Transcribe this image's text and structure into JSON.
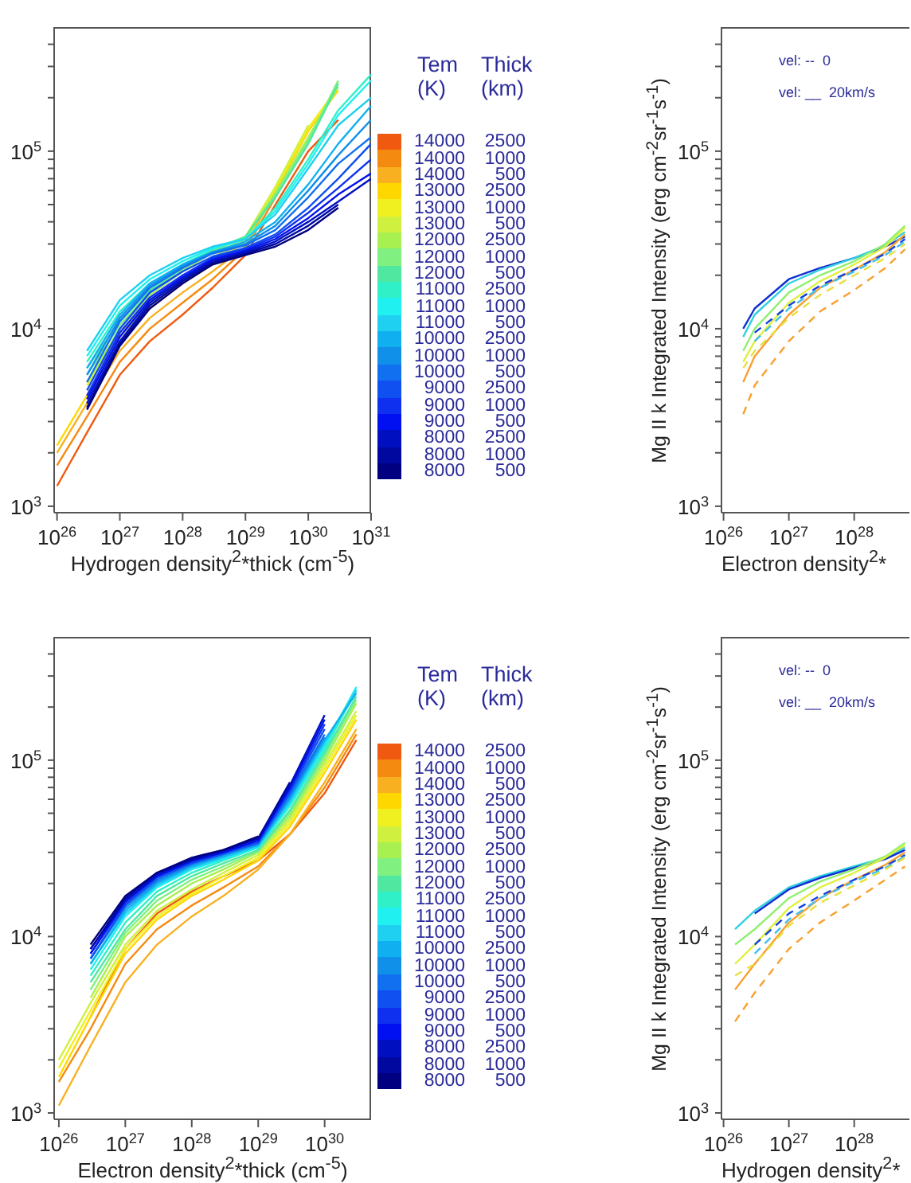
{
  "chart_data": [
    {
      "type": "line",
      "log": "xy",
      "xlabel": "Hydrogen density$^{2}$*thick (cm$^{-5}$)",
      "legend": "right",
      "legend_title": "Tem  Thick\n(K)  (km)",
      "xlim": [
        9e+25,
        1e+31
      ],
      "ylim": [
        920,
        500000
      ],
      "xticks": [
        {
          "value": 1e+26,
          "label": "10$^{26}$"
        },
        {
          "value": 1e+27,
          "label": "10$^{27}$"
        },
        {
          "value": 1e+28,
          "label": "10$^{28}$"
        },
        {
          "value": 1e+29,
          "label": "10$^{29}$"
        },
        {
          "value": 1e+30,
          "label": "10$^{30}$"
        },
        {
          "value": 1e+31,
          "label": "10$^{31}$"
        }
      ],
      "yticks": [
        {
          "value": 1000,
          "label": "10$^{3}$"
        },
        {
          "value": 2000,
          "label": null
        },
        {
          "value": 3000,
          "label": null
        },
        {
          "value": 4000,
          "label": null
        },
        {
          "value": 5000,
          "label": null
        },
        {
          "value": 6000,
          "label": null
        },
        {
          "value": 7000,
          "label": null
        },
        {
          "value": 8000,
          "label": null
        },
        {
          "value": 9000,
          "label": null
        },
        {
          "value": 10000,
          "label": "10$^{4}$"
        },
        {
          "value": 20000,
          "label": null
        },
        {
          "value": 30000,
          "label": null
        },
        {
          "value": 40000,
          "label": null
        },
        {
          "value": 50000,
          "label": null
        },
        {
          "value": 60000,
          "label": null
        },
        {
          "value": 70000,
          "label": null
        },
        {
          "value": 80000,
          "label": null
        },
        {
          "value": 90000,
          "label": null
        },
        {
          "value": 100000,
          "label": "10$^{5}$"
        },
        {
          "value": 200000,
          "label": null
        },
        {
          "value": 300000,
          "label": null
        },
        {
          "value": 400000,
          "label": null
        }
      ],
      "x": [
        1e+26,
        3e+26,
        1e+27,
        3e+27,
        1e+28,
        3e+28,
        1e+29,
        3e+29,
        1e+30,
        3e+30,
        1e+31
      ],
      "series": [
        {
          "name": "14000 2500",
          "color": "#f05a10",
          "values": [
            1300,
            2600,
            5500,
            8500,
            12000,
            17000,
            26000,
            50000,
            100000,
            150000,
            null
          ]
        },
        {
          "name": "14000 1000",
          "color": "#f58a10",
          "values": [
            1700,
            3200,
            6500,
            10000,
            14000,
            19000,
            28000,
            55000,
            115000,
            null,
            null
          ]
        },
        {
          "name": "14000 500",
          "color": "#f8b020",
          "values": [
            2000,
            3800,
            7500,
            11500,
            16000,
            21000,
            29000,
            60000,
            130000,
            null,
            null
          ]
        },
        {
          "name": "13000 2500",
          "color": "#ffd700",
          "values": [
            2200,
            4200,
            8500,
            13000,
            18000,
            23000,
            31000,
            60000,
            130000,
            220000,
            null
          ]
        },
        {
          "name": "13000 1000",
          "color": "#f0f020",
          "values": [
            null,
            4800,
            9000,
            14000,
            19000,
            24000,
            32000,
            62000,
            135000,
            230000,
            null
          ]
        },
        {
          "name": "13000 500",
          "color": "#d0f040",
          "values": [
            null,
            5000,
            9500,
            14500,
            19500,
            25000,
            33000,
            63000,
            140000,
            null,
            null
          ]
        },
        {
          "name": "12000 2500",
          "color": "#a8f050",
          "values": [
            null,
            5000,
            10000,
            15500,
            21000,
            27000,
            33000,
            58000,
            120000,
            230000,
            null
          ]
        },
        {
          "name": "12000 1000",
          "color": "#80f080",
          "values": [
            null,
            5500,
            10500,
            16000,
            21500,
            27500,
            33000,
            57000,
            115000,
            250000,
            null
          ]
        },
        {
          "name": "12000 500",
          "color": "#50e8a0",
          "values": [
            null,
            6000,
            11000,
            16500,
            22000,
            28000,
            33000,
            55000,
            110000,
            240000,
            null
          ]
        },
        {
          "name": "11000 2500",
          "color": "#30f0c8",
          "values": [
            null,
            6500,
            12500,
            18000,
            23000,
            28000,
            32000,
            48000,
            90000,
            170000,
            270000
          ]
        },
        {
          "name": "11000 1000",
          "color": "#20f0f0",
          "values": [
            null,
            7000,
            13500,
            19000,
            24000,
            28500,
            32000,
            46000,
            85000,
            160000,
            250000
          ]
        },
        {
          "name": "11000 500",
          "color": "#20d0f0",
          "values": [
            null,
            7500,
            14500,
            20000,
            25000,
            29000,
            32000,
            44000,
            80000,
            140000,
            200000
          ]
        },
        {
          "name": "10000 2500",
          "color": "#10b0f0",
          "values": [
            null,
            6000,
            12000,
            18000,
            23000,
            27000,
            31000,
            40000,
            65000,
            110000,
            180000
          ]
        },
        {
          "name": "10000 1000",
          "color": "#1090e8",
          "values": [
            null,
            5500,
            11500,
            17500,
            22500,
            27000,
            30000,
            38000,
            60000,
            95000,
            150000
          ]
        },
        {
          "name": "10000 500",
          "color": "#1070f0",
          "values": [
            null,
            5000,
            11000,
            17000,
            22000,
            26500,
            29500,
            36000,
            55000,
            85000,
            120000
          ]
        },
        {
          "name": "9000 2500",
          "color": "#1050f0",
          "values": [
            null,
            4500,
            10000,
            16000,
            21000,
            25500,
            28500,
            34000,
            48000,
            70000,
            110000
          ]
        },
        {
          "name": "9000 1000",
          "color": "#1030f0",
          "values": [
            null,
            4200,
            9500,
            15000,
            20000,
            25000,
            28000,
            33000,
            45000,
            62000,
            90000
          ]
        },
        {
          "name": "9000 500",
          "color": "#0010f0",
          "values": [
            null,
            4000,
            9000,
            14500,
            19500,
            24500,
            27500,
            32000,
            42000,
            57000,
            75000
          ]
        },
        {
          "name": "8000 2500",
          "color": "#0010c0",
          "values": [
            null,
            3800,
            8500,
            14000,
            19000,
            24000,
            27000,
            31000,
            40000,
            52000,
            70000
          ]
        },
        {
          "name": "8000 1000",
          "color": "#0008a0",
          "values": [
            null,
            3600,
            8200,
            13500,
            18500,
            23500,
            26500,
            30000,
            38000,
            50000,
            null
          ]
        },
        {
          "name": "8000 500",
          "color": "#000080",
          "values": [
            null,
            3500,
            8000,
            13000,
            18000,
            23000,
            26000,
            29000,
            36000,
            48000,
            null
          ]
        }
      ]
    },
    {
      "type": "line",
      "log": "xy",
      "xlabel": "Electron density$^{2}$*thick (cm$^{-5}$)",
      "legend": "right",
      "legend_title": "Tem  Thick\n(K)  (km)",
      "xlim": [
        8.5e+25,
        5e+30
      ],
      "ylim": [
        920,
        500000
      ],
      "xticks": [
        {
          "value": 1e+26,
          "label": "10$^{26}$"
        },
        {
          "value": 1e+27,
          "label": "10$^{27}$"
        },
        {
          "value": 1e+28,
          "label": "10$^{28}$"
        },
        {
          "value": 1e+29,
          "label": "10$^{29}$"
        },
        {
          "value": 1e+30,
          "label": "10$^{30}$"
        }
      ],
      "yticks": [
        {
          "value": 1000,
          "label": "10$^{3}$"
        },
        {
          "value": 2000,
          "label": null
        },
        {
          "value": 3000,
          "label": null
        },
        {
          "value": 4000,
          "label": null
        },
        {
          "value": 5000,
          "label": null
        },
        {
          "value": 6000,
          "label": null
        },
        {
          "value": 7000,
          "label": null
        },
        {
          "value": 8000,
          "label": null
        },
        {
          "value": 9000,
          "label": null
        },
        {
          "value": 10000,
          "label": "10$^{4}$"
        },
        {
          "value": 20000,
          "label": null
        },
        {
          "value": 30000,
          "label": null
        },
        {
          "value": 40000,
          "label": null
        },
        {
          "value": 50000,
          "label": null
        },
        {
          "value": 60000,
          "label": null
        },
        {
          "value": 70000,
          "label": null
        },
        {
          "value": 80000,
          "label": null
        },
        {
          "value": 90000,
          "label": null
        },
        {
          "value": 100000,
          "label": "10$^{5}$"
        },
        {
          "value": 200000,
          "label": null
        },
        {
          "value": 300000,
          "label": null
        },
        {
          "value": 400000,
          "label": null
        }
      ],
      "x": [
        1e+26,
        3e+26,
        1e+27,
        3e+27,
        1e+28,
        3e+28,
        1e+29,
        3e+29,
        1e+30,
        3e+30
      ],
      "series": [
        {
          "name": "14000 2500",
          "color": "#f05a10",
          "values": [
            null,
            3500,
            8500,
            13500,
            18000,
            22000,
            27000,
            38000,
            65000,
            130000
          ]
        },
        {
          "name": "14000 1000",
          "color": "#f58a10",
          "values": [
            1500,
            3000,
            7000,
            11000,
            15000,
            19000,
            25000,
            38000,
            70000,
            140000
          ]
        },
        {
          "name": "14000 500",
          "color": "#f8b020",
          "values": [
            1100,
            2400,
            5500,
            9000,
            13000,
            17000,
            24000,
            38000,
            75000,
            150000
          ]
        },
        {
          "name": "13000 2500",
          "color": "#ffd700",
          "values": [
            1600,
            3500,
            8000,
            12500,
            17000,
            21000,
            27000,
            42000,
            85000,
            170000
          ]
        },
        {
          "name": "13000 1000",
          "color": "#f0f020",
          "values": [
            1800,
            3800,
            8500,
            13000,
            17500,
            22000,
            28000,
            44000,
            90000,
            180000
          ]
        },
        {
          "name": "13000 500",
          "color": "#d0f040",
          "values": [
            2000,
            4200,
            9000,
            14000,
            18500,
            23000,
            29000,
            46000,
            95000,
            190000
          ]
        },
        {
          "name": "12000 2500",
          "color": "#a8f050",
          "values": [
            null,
            4500,
            10000,
            15000,
            20000,
            24000,
            30000,
            48000,
            100000,
            210000
          ]
        },
        {
          "name": "12000 1000",
          "color": "#80f080",
          "values": [
            null,
            5000,
            10500,
            16000,
            21000,
            25000,
            30500,
            50000,
            105000,
            220000
          ]
        },
        {
          "name": "12000 500",
          "color": "#50e8a0",
          "values": [
            null,
            5500,
            11000,
            17000,
            22000,
            26000,
            31000,
            52000,
            110000,
            230000
          ]
        },
        {
          "name": "11000 2500",
          "color": "#30f0c8",
          "values": [
            null,
            6000,
            12000,
            18000,
            23000,
            27000,
            32000,
            55000,
            115000,
            250000
          ]
        },
        {
          "name": "11000 1000",
          "color": "#20f0f0",
          "values": [
            null,
            6500,
            13000,
            19000,
            24000,
            27500,
            32000,
            56000,
            120000,
            260000
          ]
        },
        {
          "name": "11000 500",
          "color": "#20d0f0",
          "values": [
            null,
            7000,
            13500,
            19500,
            24500,
            28000,
            32500,
            58000,
            125000,
            250000
          ]
        },
        {
          "name": "10000 2500",
          "color": "#10b0f0",
          "values": [
            null,
            7000,
            14000,
            20000,
            25000,
            28500,
            33000,
            60000,
            130000,
            240000
          ]
        },
        {
          "name": "10000 1000",
          "color": "#1090e8",
          "values": [
            null,
            7500,
            14500,
            20500,
            25500,
            29000,
            33500,
            62000,
            135000,
            null
          ]
        },
        {
          "name": "10000 500",
          "color": "#1070f0",
          "values": [
            null,
            7500,
            15000,
            21000,
            26000,
            29500,
            34000,
            64000,
            140000,
            null
          ]
        },
        {
          "name": "9000 2500",
          "color": "#1050f0",
          "values": [
            null,
            7500,
            15000,
            21500,
            26000,
            29500,
            34000,
            66000,
            150000,
            null
          ]
        },
        {
          "name": "9000 1000",
          "color": "#1030f0",
          "values": [
            null,
            8000,
            15500,
            22000,
            26500,
            30000,
            35000,
            68000,
            160000,
            null
          ]
        },
        {
          "name": "9000 500",
          "color": "#0010f0",
          "values": [
            null,
            8000,
            16000,
            22000,
            27000,
            30000,
            35000,
            70000,
            170000,
            null
          ]
        },
        {
          "name": "8000 2500",
          "color": "#0010c0",
          "values": [
            null,
            8500,
            16000,
            22500,
            27000,
            30500,
            36000,
            72000,
            180000,
            null
          ]
        },
        {
          "name": "8000 1000",
          "color": "#0008a0",
          "values": [
            null,
            8500,
            16500,
            23000,
            27500,
            31000,
            36000,
            75000,
            null,
            null
          ]
        },
        {
          "name": "8000 500",
          "color": "#000080",
          "values": [
            null,
            9000,
            17000,
            23000,
            28000,
            31000,
            37000,
            null,
            null,
            null
          ]
        }
      ]
    },
    {
      "type": "line",
      "log": "xy",
      "xlabel": "Electron density$^{2}$*",
      "ylabel": "Mg II k Integrated Intensity (erg cm$^{-2}$sr$^{-1}$s$^{-1}$)",
      "annotations": [
        "vel: --  0",
        "vel: __  20km/s"
      ],
      "xlim": [
        9.3e+25,
        7e+28
      ],
      "ylim": [
        920,
        500000
      ],
      "xticks": [
        {
          "value": 1e+26,
          "label": "10$^{26}$"
        },
        {
          "value": 1e+27,
          "label": "10$^{27}$"
        },
        {
          "value": 1e+28,
          "label": "10$^{28}$"
        }
      ],
      "yticks": [
        {
          "value": 1000,
          "label": "10$^{3}$"
        },
        {
          "value": 2000,
          "label": null
        },
        {
          "value": 3000,
          "label": null
        },
        {
          "value": 4000,
          "label": null
        },
        {
          "value": 5000,
          "label": null
        },
        {
          "value": 6000,
          "label": null
        },
        {
          "value": 7000,
          "label": null
        },
        {
          "value": 8000,
          "label": null
        },
        {
          "value": 9000,
          "label": null
        },
        {
          "value": 10000,
          "label": "10$^{4}$"
        },
        {
          "value": 20000,
          "label": null
        },
        {
          "value": 30000,
          "label": null
        },
        {
          "value": 40000,
          "label": null
        },
        {
          "value": 50000,
          "label": null
        },
        {
          "value": 60000,
          "label": null
        },
        {
          "value": 70000,
          "label": null
        },
        {
          "value": 80000,
          "label": null
        },
        {
          "value": 90000,
          "label": null
        },
        {
          "value": 100000,
          "label": "10$^{5}$"
        },
        {
          "value": 200000,
          "label": null
        },
        {
          "value": 300000,
          "label": null
        },
        {
          "value": 400000,
          "label": null
        }
      ],
      "x": [
        2e+26,
        3e+26,
        1e+27,
        3e+27,
        1e+28,
        3e+28,
        6e+28
      ],
      "series": [
        {
          "color": "#1030d0",
          "line_style": "solid",
          "values": [
            10000,
            13000,
            19000,
            22000,
            25000,
            29000,
            33000
          ]
        },
        {
          "color": "#30d0e0",
          "line_style": "solid",
          "values": [
            9000,
            12000,
            18000,
            21500,
            25000,
            29500,
            35000
          ]
        },
        {
          "color": "#90f070",
          "line_style": "solid",
          "values": [
            7500,
            10000,
            16000,
            20000,
            24000,
            30000,
            38000
          ]
        },
        {
          "color": "#e0f040",
          "line_style": "solid",
          "values": [
            6500,
            8500,
            14000,
            18500,
            23000,
            29000,
            37000
          ]
        },
        {
          "color": "#f8a030",
          "line_style": "solid",
          "values": [
            5000,
            7000,
            12000,
            17000,
            21500,
            27000,
            34000
          ]
        },
        {
          "color": "#1040e0",
          "line_style": "dashed",
          "values": [
            null,
            9500,
            13500,
            17500,
            21500,
            26500,
            32000
          ]
        },
        {
          "color": "#40c0f0",
          "line_style": "dashed",
          "values": [
            null,
            8500,
            13000,
            17000,
            21000,
            26000,
            31000
          ]
        },
        {
          "color": "#e8e040",
          "line_style": "dashed",
          "values": [
            6000,
            7500,
            11500,
            15500,
            20000,
            25000,
            30000
          ]
        },
        {
          "color": "#f8a030",
          "line_style": "dashed",
          "values": [
            3300,
            4800,
            8500,
            12500,
            16500,
            22000,
            28000
          ]
        }
      ]
    },
    {
      "type": "line",
      "log": "xy",
      "xlabel": "Hydrogen density$^{2}$*",
      "ylabel": "Mg II k Integrated Intensity (erg cm$^{-2}$sr$^{-1}$s$^{-1}$)",
      "annotations": [
        "vel: --  0",
        "vel: __  20km/s"
      ],
      "xlim": [
        9.3e+25,
        7e+28
      ],
      "ylim": [
        920,
        500000
      ],
      "xticks": [
        {
          "value": 1e+26,
          "label": "10$^{26}$"
        },
        {
          "value": 1e+27,
          "label": "10$^{27}$"
        },
        {
          "value": 1e+28,
          "label": "10$^{28}$"
        }
      ],
      "yticks": [
        {
          "value": 1000,
          "label": "10$^{3}$"
        },
        {
          "value": 2000,
          "label": null
        },
        {
          "value": 3000,
          "label": null
        },
        {
          "value": 4000,
          "label": null
        },
        {
          "value": 5000,
          "label": null
        },
        {
          "value": 6000,
          "label": null
        },
        {
          "value": 7000,
          "label": null
        },
        {
          "value": 8000,
          "label": null
        },
        {
          "value": 9000,
          "label": null
        },
        {
          "value": 10000,
          "label": "10$^{4}$"
        },
        {
          "value": 20000,
          "label": null
        },
        {
          "value": 30000,
          "label": null
        },
        {
          "value": 40000,
          "label": null
        },
        {
          "value": 50000,
          "label": null
        },
        {
          "value": 60000,
          "label": null
        },
        {
          "value": 70000,
          "label": null
        },
        {
          "value": 80000,
          "label": null
        },
        {
          "value": 90000,
          "label": null
        },
        {
          "value": 100000,
          "label": "10$^{5}$"
        },
        {
          "value": 200000,
          "label": null
        },
        {
          "value": 300000,
          "label": null
        },
        {
          "value": 400000,
          "label": null
        }
      ],
      "x": [
        1.5e+26,
        3e+26,
        1e+27,
        3e+27,
        1e+28,
        3e+28,
        6e+28
      ],
      "series": [
        {
          "color": "#30d0e0",
          "line_style": "solid",
          "values": [
            11000,
            14000,
            19000,
            22000,
            25000,
            28000,
            32000
          ]
        },
        {
          "color": "#1030d0",
          "line_style": "solid",
          "values": [
            null,
            13500,
            18500,
            21500,
            24500,
            27500,
            31000
          ]
        },
        {
          "color": "#90f070",
          "line_style": "solid",
          "values": [
            9000,
            11000,
            16500,
            20500,
            24000,
            28500,
            34000
          ]
        },
        {
          "color": "#e0f040",
          "line_style": "solid",
          "values": [
            7000,
            9000,
            14500,
            19000,
            23000,
            28000,
            33000
          ]
        },
        {
          "color": "#f8a030",
          "line_style": "solid",
          "values": [
            5000,
            7000,
            12000,
            16500,
            21000,
            25500,
            30000
          ]
        },
        {
          "color": "#1040e0",
          "line_style": "dashed",
          "values": [
            null,
            9000,
            13500,
            17000,
            21000,
            25000,
            29000
          ]
        },
        {
          "color": "#40c0f0",
          "line_style": "dashed",
          "values": [
            null,
            8000,
            12500,
            16500,
            20500,
            24500,
            28500
          ]
        },
        {
          "color": "#e8e040",
          "line_style": "dashed",
          "values": [
            6000,
            7000,
            11500,
            15500,
            19500,
            24000,
            28000
          ]
        },
        {
          "color": "#f8a030",
          "line_style": "dashed",
          "values": [
            3300,
            4800,
            8500,
            12000,
            16000,
            21000,
            25000
          ]
        }
      ]
    }
  ]
}
